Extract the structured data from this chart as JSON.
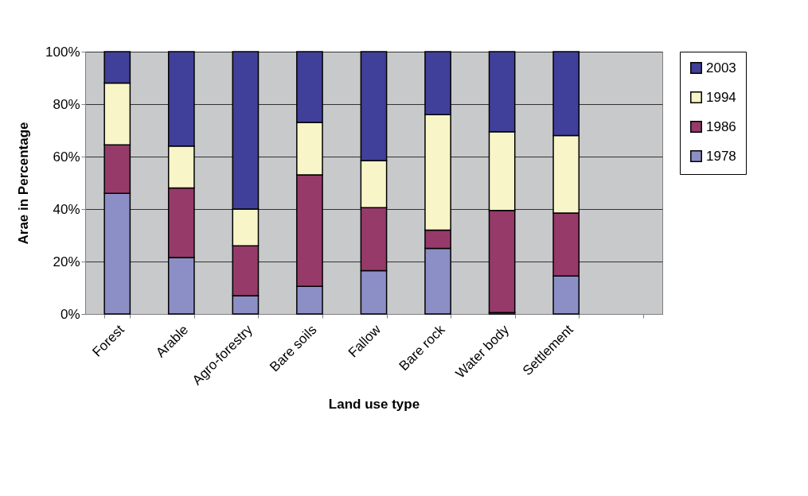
{
  "chart_data": {
    "type": "bar",
    "stacked": true,
    "xlabel": "Land use type",
    "ylabel": "Arae in Percentage",
    "categories": [
      "Forest",
      "Arable",
      "Agro-forestry",
      "Bare soils",
      "Fallow",
      "Bare rock",
      "Water body",
      "Settlement",
      null
    ],
    "series": [
      {
        "name": "1978",
        "color": "#8c8fc6",
        "values": [
          46,
          21.5,
          7,
          10.5,
          16.5,
          25,
          0.5,
          14.5,
          null
        ]
      },
      {
        "name": "1986",
        "color": "#963a6a",
        "values": [
          18.5,
          26.5,
          19,
          42.5,
          24,
          7,
          39,
          24,
          null
        ]
      },
      {
        "name": "1994",
        "color": "#f8f6c8",
        "values": [
          23.5,
          16,
          14,
          20,
          18,
          44,
          30,
          29.5,
          null
        ]
      },
      {
        "name": "2003",
        "color": "#40409a",
        "values": [
          12,
          36,
          60,
          27,
          41.5,
          24,
          30.5,
          32,
          null
        ]
      }
    ],
    "ylim": [
      0,
      100
    ],
    "yticks": [
      {
        "value": 0,
        "label": "0%"
      },
      {
        "value": 20,
        "label": "20%"
      },
      {
        "value": 40,
        "label": "40%"
      },
      {
        "value": 60,
        "label": "60%"
      },
      {
        "value": 80,
        "label": "80%"
      },
      {
        "value": 100,
        "label": "100%"
      }
    ],
    "grid": "y",
    "legend": "right"
  }
}
